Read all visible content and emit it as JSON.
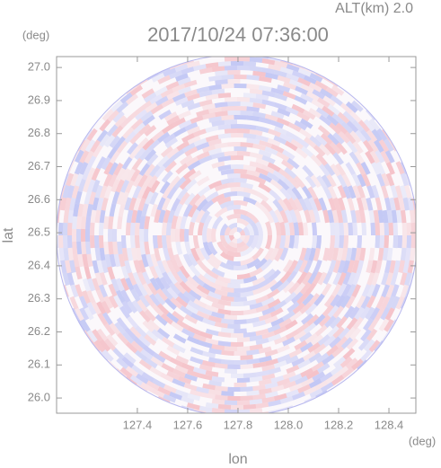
{
  "chart_data": {
    "type": "radar-field",
    "altitude": "ALT(km) 2.0",
    "title": "2017/10/24 07:36:00",
    "x_label": "lon",
    "y_label": "lat",
    "x_unit": "(deg)",
    "y_unit": "(deg)",
    "xlim": [
      127.079,
      128.507
    ],
    "ylim": [
      25.954,
      27.033
    ],
    "xticks": [
      127.4,
      127.6,
      127.8,
      {
        "value": 128,
        "label": "128.0"
      },
      128.2,
      128.4
    ],
    "yticks": [
      {
        "value": 26,
        "label": "26.0"
      },
      26.1,
      26.2,
      26.3,
      26.4,
      26.5,
      26.6,
      26.7,
      26.8,
      26.9,
      {
        "value": 27,
        "label": "27.0"
      }
    ]
  }
}
